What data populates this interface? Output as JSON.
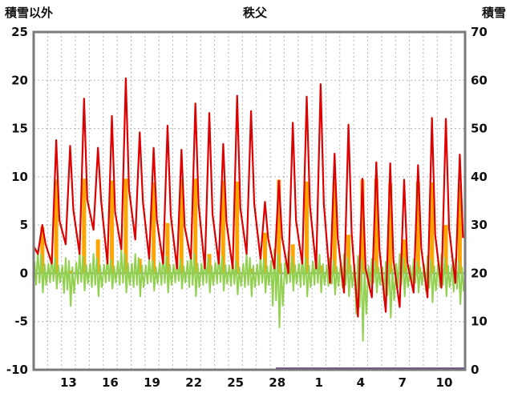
{
  "chart_data": {
    "type": "line",
    "title": "秩父",
    "left_axis": {
      "label": "積雪以外",
      "min": -10,
      "max": 25,
      "ticks": [
        25,
        20,
        15,
        10,
        5,
        0,
        -5,
        -10
      ]
    },
    "right_axis": {
      "label": "積雪",
      "min": 0,
      "max": 70,
      "ticks": [
        70,
        60,
        50,
        40,
        30,
        20,
        10,
        0
      ]
    },
    "x_axis": {
      "days_shown": 31,
      "tick_positions": [
        2,
        5,
        8,
        11,
        14,
        17,
        20,
        23,
        26,
        29
      ],
      "tick_labels": [
        "13",
        "16",
        "19",
        "22",
        "25",
        "28",
        "1",
        "4",
        "7",
        "10"
      ]
    },
    "grid": true,
    "series": [
      {
        "name": "red-line",
        "color": "#DC0000",
        "axis": "left",
        "daily_max": [
          5,
          13.8,
          13.2,
          18.1,
          13.0,
          16.3,
          20.2,
          14.6,
          13.0,
          15.3,
          12.8,
          17.6,
          16.6,
          13.4,
          18.4,
          16.8,
          7.4,
          9.6,
          15.6,
          18.3,
          19.6,
          12.4,
          15.4,
          9.8,
          11.5,
          11.4,
          9.7,
          11.2,
          16.1,
          16.0,
          12.3
        ],
        "daily_min": [
          2.0,
          1.0,
          3.0,
          2.0,
          4.5,
          1.0,
          2.5,
          3.5,
          1.5,
          1.0,
          0.5,
          1.5,
          0.5,
          1.0,
          0.5,
          2.0,
          1.5,
          0.5,
          0.0,
          1.0,
          0.5,
          -1.0,
          -2.0,
          -4.5,
          -2.5,
          -4.0,
          -3.5,
          -2.0,
          -2.5,
          -1.5,
          -1.0
        ]
      },
      {
        "name": "orange-bars",
        "color": "#FFA500",
        "axis": "left",
        "daily_values": [
          4.8,
          9.7,
          0.3,
          9.8,
          3.5,
          9.6,
          9.8,
          1.5,
          9.4,
          5.2,
          9.7,
          9.8,
          2.0,
          9.6,
          9.5,
          0.5,
          4.2,
          9.7,
          3.0,
          9.5,
          0.8,
          9.4,
          4.0,
          9.7,
          9.8,
          9.3,
          3.5,
          9.5,
          9.4,
          5.0,
          9.2
        ]
      },
      {
        "name": "green-line",
        "color": "#92D050",
        "axis": "left",
        "daily_max": [
          2.4,
          2.0,
          1.6,
          2.2,
          2.0,
          1.8,
          2.5,
          2.0,
          1.6,
          2.2,
          1.8,
          2.5,
          2.0,
          2.2,
          1.6,
          2.0,
          1.8,
          2.5,
          2.2,
          2.0,
          2.4,
          1.6,
          2.0,
          1.8,
          1.5,
          1.2,
          2.0,
          1.5,
          1.8,
          2.0,
          1.5
        ],
        "daily_min": [
          -2.0,
          -1.6,
          -3.4,
          -1.8,
          -2.4,
          -1.6,
          -2.0,
          -2.4,
          -1.8,
          -2.0,
          -1.6,
          -2.4,
          -2.0,
          -1.8,
          -2.2,
          -2.4,
          -2.0,
          -5.6,
          -1.8,
          -2.4,
          -2.0,
          -2.2,
          -2.4,
          -7.0,
          -2.0,
          -4.6,
          -2.4,
          -2.0,
          -3.0,
          -2.4,
          -3.2
        ]
      },
      {
        "name": "purple-line",
        "color": "#5A2D82",
        "axis": "right",
        "x_range": [
          17.4,
          31
        ],
        "value": 0
      }
    ],
    "style": {
      "frame_color": "#7A7A7A",
      "grid_color": "#B3B3B3",
      "zero_line_color": "#8C8C8C",
      "tick_text_color": "#111111",
      "background": "#FFFFFF"
    }
  }
}
